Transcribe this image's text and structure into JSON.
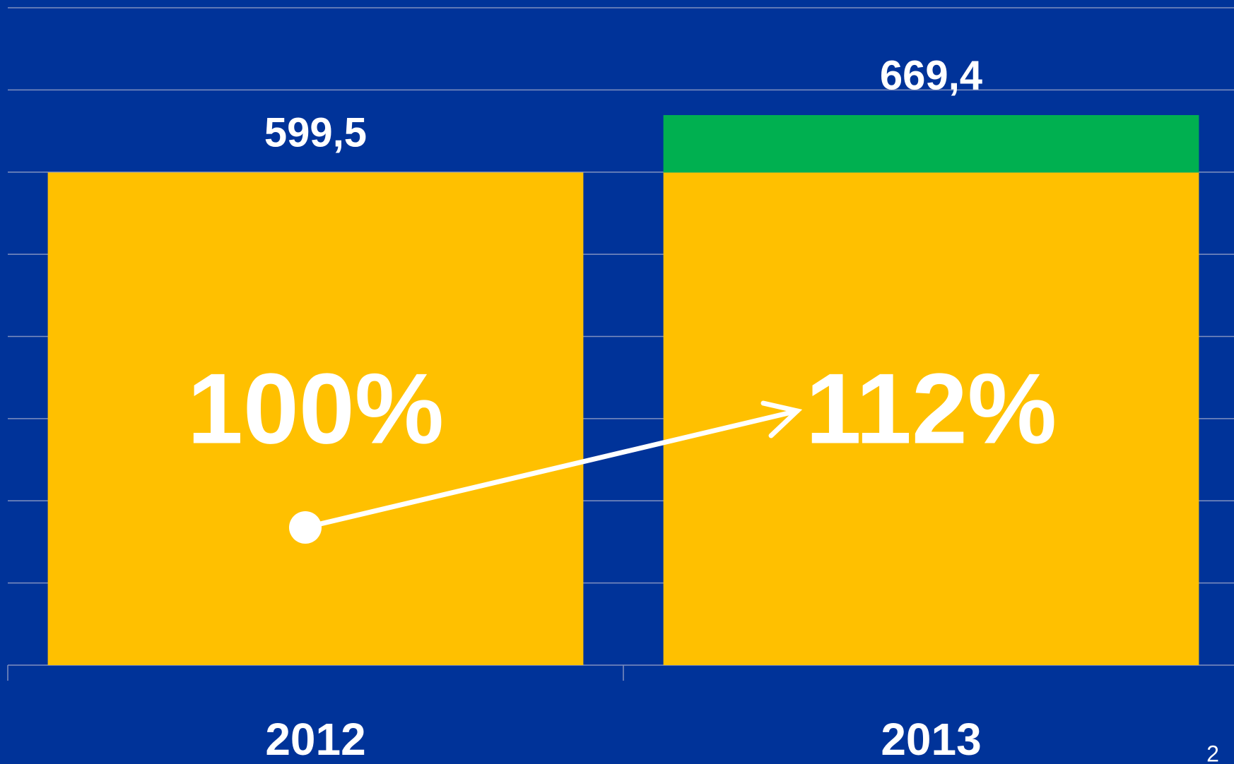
{
  "chart_data": {
    "type": "stacked_bar",
    "categories": [
      "2012",
      "2013"
    ],
    "series": [
      {
        "color": "#FFC000",
        "values": [
          599.5,
          599.5
        ]
      },
      {
        "color": "#00B050",
        "values": [
          null,
          69.9
        ]
      }
    ],
    "totals": [
      599.5,
      669.4
    ],
    "total_labels": [
      "599,5",
      "669,4"
    ],
    "annotations": [
      "100%",
      "112%"
    ],
    "ylim": [
      0,
      800
    ],
    "yticks": [
      0,
      100,
      200,
      300,
      400,
      500,
      600,
      700,
      800
    ],
    "grid": true,
    "page_number": "2"
  }
}
